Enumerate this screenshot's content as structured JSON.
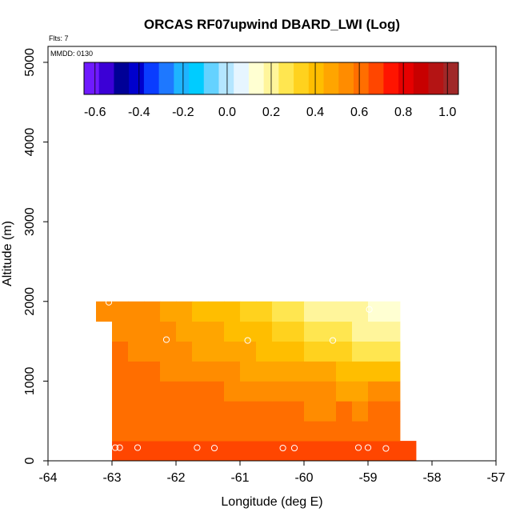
{
  "chart_data": {
    "type": "heatmap",
    "title": "ORCAS RF07upwind DBARD_LWI (Log)",
    "xlabel": "Longitude (deg E)",
    "ylabel": "Altitude (m)",
    "xlim": [
      -64,
      -57
    ],
    "ylim": [
      0,
      5200
    ],
    "xticks": [
      "-64",
      "-63",
      "-62",
      "-61",
      "-60",
      "-59",
      "-58",
      "-57"
    ],
    "yticks": [
      "0",
      "1000",
      "2000",
      "3000",
      "4000",
      "5000"
    ],
    "flts_label": "Flts: 7",
    "mmdd_label": "MMDD: 0130",
    "colorbar": {
      "min": -0.65,
      "max": 1.05,
      "ticks": [
        "-0.6",
        "-0.4",
        "-0.2",
        "0.0",
        "0.2",
        "0.4",
        "0.6",
        "0.8",
        "1.0"
      ],
      "colors": [
        "#6f1aff",
        "#3b00d6",
        "#000096",
        "#0000cd",
        "#0a3cff",
        "#1e78ff",
        "#1eb4ff",
        "#00ccff",
        "#64d2ff",
        "#b4e6ff",
        "#e6f5ff",
        "#ffffd2",
        "#fff59b",
        "#ffe650",
        "#ffd21e",
        "#ffbe00",
        "#ffa500",
        "#ff8c00",
        "#ff6e00",
        "#ff4600",
        "#ff1400",
        "#e60000",
        "#c80000",
        "#b41414",
        "#a02828"
      ]
    },
    "grid": {
      "x_start": -63,
      "x_step": 0.25,
      "y_step": 250,
      "rows": [
        {
          "y0": 0,
          "x0": -63,
          "values": [
            0.69,
            0.7,
            0.7,
            0.71,
            0.69,
            0.7,
            0.7,
            0.69,
            0.71,
            0.7,
            0.69,
            0.7,
            0.71,
            0.7,
            0.69,
            0.7,
            0.7,
            0.7,
            0.71
          ]
        },
        {
          "y0": 250,
          "x0": -63,
          "values": [
            0.63,
            0.64,
            0.63,
            0.64,
            0.63,
            0.63,
            0.62,
            0.62,
            0.62,
            0.61,
            0.61,
            0.6,
            0.61,
            0.6,
            0.6,
            0.59,
            0.6,
            0.59
          ]
        },
        {
          "y0": 500,
          "x0": -63,
          "values": [
            0.63,
            0.62,
            0.63,
            0.62,
            0.61,
            0.61,
            0.6,
            0.6,
            0.59,
            0.59,
            0.58,
            0.58,
            0.57,
            0.57,
            0.58,
            0.57,
            0.58,
            0.59
          ]
        },
        {
          "y0": 750,
          "x0": -63,
          "values": [
            0.62,
            0.61,
            0.61,
            0.6,
            0.59,
            0.58,
            0.58,
            0.56,
            0.56,
            0.55,
            0.54,
            0.53,
            0.52,
            0.51,
            0.5,
            0.5,
            0.51,
            0.52
          ]
        },
        {
          "y0": 1000,
          "x0": -63,
          "values": [
            0.6,
            0.59,
            0.58,
            0.56,
            0.55,
            0.54,
            0.52,
            0.51,
            0.5,
            0.49,
            0.48,
            0.46,
            0.45,
            0.44,
            0.43,
            0.42,
            0.42,
            0.43
          ]
        },
        {
          "y0": 1250,
          "x0": -63,
          "values": [
            0.58,
            0.57,
            0.56,
            0.54,
            0.52,
            0.5,
            0.48,
            0.46,
            0.44,
            0.42,
            0.4,
            0.38,
            0.35,
            0.33,
            0.31,
            0.3,
            0.29,
            0.28
          ]
        },
        {
          "y0": 1500,
          "x0": -63,
          "values": [
            0.56,
            0.55,
            0.53,
            0.51,
            0.49,
            0.47,
            0.45,
            0.42,
            0.4,
            0.37,
            0.34,
            0.31,
            0.28,
            0.26,
            0.24,
            0.22,
            0.2,
            0.19
          ]
        },
        {
          "y0": 1750,
          "x0": -63.25,
          "values": [
            0.57,
            0.55,
            0.53,
            0.51,
            0.49,
            0.46,
            0.43,
            0.4,
            0.37,
            0.34,
            0.31,
            0.28,
            0.25,
            0.23,
            0.21,
            0.19,
            0.17,
            0.16,
            0.16
          ]
        }
      ]
    },
    "points": [
      {
        "x": -63.05,
        "y": 1990
      },
      {
        "x": -62.15,
        "y": 1520
      },
      {
        "x": -60.88,
        "y": 1510
      },
      {
        "x": -59.55,
        "y": 1510
      },
      {
        "x": -58.98,
        "y": 1900
      },
      {
        "x": -62.95,
        "y": 165
      },
      {
        "x": -62.88,
        "y": 165
      },
      {
        "x": -62.6,
        "y": 165
      },
      {
        "x": -61.67,
        "y": 165
      },
      {
        "x": -61.4,
        "y": 160
      },
      {
        "x": -60.33,
        "y": 160
      },
      {
        "x": -60.15,
        "y": 160
      },
      {
        "x": -59.15,
        "y": 165
      },
      {
        "x": -59.0,
        "y": 165
      },
      {
        "x": -58.72,
        "y": 155
      }
    ]
  }
}
